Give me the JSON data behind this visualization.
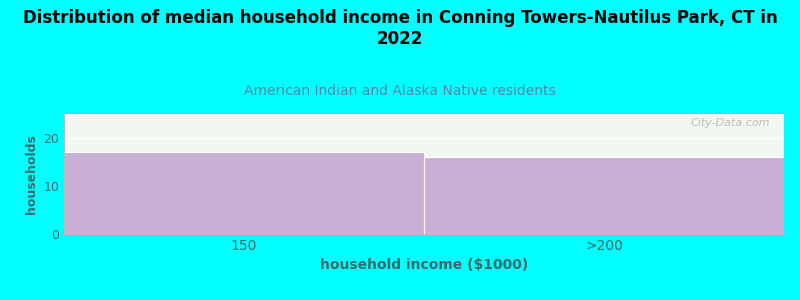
{
  "title": "Distribution of median household income in Conning Towers-Nautilus Park, CT in\n2022",
  "subtitle": "American Indian and Alaska Native residents",
  "xlabel": "household income ($1000)",
  "ylabel": "households",
  "categories": [
    "150",
    ">200"
  ],
  "values": [
    17,
    16
  ],
  "bar_color": "#c9afd4",
  "bar_edge_color": "#ffffff",
  "background_color": "#00ffff",
  "plot_bg_color": "#f0f8f0",
  "ylim": [
    0,
    25
  ],
  "yticks": [
    0,
    10,
    20
  ],
  "title_fontsize": 12,
  "subtitle_fontsize": 10,
  "subtitle_color": "#5588aa",
  "axis_label_color": "#3a6a6a",
  "tick_color": "#3a6a6a",
  "watermark": "City-Data.com"
}
